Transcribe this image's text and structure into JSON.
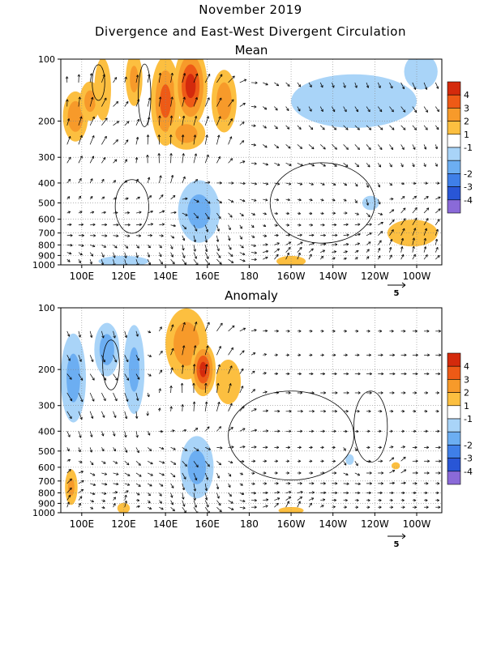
{
  "header": {
    "title": "November 2019",
    "subtitle": "Divergence and East-West Divergent Circulation"
  },
  "chart_data": [
    {
      "type": "heatmap",
      "title": "Mean",
      "x_tick_labels": [
        "100E",
        "120E",
        "140E",
        "160E",
        "180",
        "160W",
        "140W",
        "120W",
        "100W"
      ],
      "x_ticks_deg_east": [
        100,
        120,
        140,
        160,
        180,
        200,
        220,
        240,
        260
      ],
      "xlim_deg_east": [
        90,
        272
      ],
      "y_tick_labels": [
        "100",
        "200",
        "300",
        "400",
        "500",
        "600",
        "700",
        "800",
        "900",
        "1000"
      ],
      "y_ticks_hpa": [
        100,
        200,
        300,
        400,
        500,
        600,
        700,
        800,
        900,
        1000
      ],
      "ylim_hpa": [
        100,
        1000
      ],
      "y_scale": "log",
      "vector_reference": "5",
      "colorbar": {
        "labels": [
          "4",
          "3",
          "2",
          "1",
          "-1",
          "-2",
          "-3",
          "-4"
        ],
        "colors": [
          "#d42a0c",
          "#ee5a16",
          "#f79a2a",
          "#fcbf40",
          "#ffffff",
          "#a9d4f8",
          "#6caef2",
          "#3f7fe8",
          "#2956d6",
          "#8a6ad8"
        ]
      },
      "blobs": [
        {
          "lon": 97,
          "p": 190,
          "rx": 6,
          "ry": 0.28,
          "v": 2.6
        },
        {
          "lon": 104,
          "p": 160,
          "rx": 5,
          "ry": 0.22,
          "v": 2.2
        },
        {
          "lon": 110,
          "p": 140,
          "rx": 4,
          "ry": 0.35,
          "v": 1.6
        },
        {
          "lon": 125,
          "p": 125,
          "rx": 4,
          "ry": 0.3,
          "v": 2.0
        },
        {
          "lon": 140,
          "p": 160,
          "rx": 7,
          "ry": 0.5,
          "v": 3.2
        },
        {
          "lon": 152,
          "p": 135,
          "rx": 8,
          "ry": 0.45,
          "v": 4.3
        },
        {
          "lon": 150,
          "p": 230,
          "rx": 9,
          "ry": 0.18,
          "v": 2.4
        },
        {
          "lon": 168,
          "p": 160,
          "rx": 6,
          "ry": 0.35,
          "v": 2.5
        },
        {
          "lon": 156,
          "p": 550,
          "rx": 10,
          "ry": 0.35,
          "v": -2.2
        },
        {
          "lon": 230,
          "p": 160,
          "rx": 30,
          "ry": 0.3,
          "v": -1.8
        },
        {
          "lon": 262,
          "p": 115,
          "rx": 8,
          "ry": 0.2,
          "v": -1.7
        },
        {
          "lon": 238,
          "p": 500,
          "rx": 4,
          "ry": 0.08,
          "v": -1.5
        },
        {
          "lon": 258,
          "p": 700,
          "rx": 12,
          "ry": 0.15,
          "v": 1.8
        },
        {
          "lon": 200,
          "p": 960,
          "rx": 7,
          "ry": 0.06,
          "v": 1.6
        },
        {
          "lon": 120,
          "p": 960,
          "rx": 12,
          "ry": 0.06,
          "v": -1.5
        }
      ],
      "contours": [
        {
          "lon": 108,
          "p": 130,
          "rx": 3,
          "ry": 0.2
        },
        {
          "lon": 130,
          "p": 150,
          "rx": 3,
          "ry": 0.35
        },
        {
          "lon": 215,
          "p": 500,
          "rx": 25,
          "ry": 0.45
        },
        {
          "lon": 124,
          "p": 520,
          "rx": 8,
          "ry": 0.3
        }
      ]
    },
    {
      "type": "heatmap",
      "title": "Anomaly",
      "x_tick_labels": [
        "100E",
        "120E",
        "140E",
        "160E",
        "180",
        "160W",
        "140W",
        "120W",
        "100W"
      ],
      "x_ticks_deg_east": [
        100,
        120,
        140,
        160,
        180,
        200,
        220,
        240,
        260
      ],
      "xlim_deg_east": [
        90,
        272
      ],
      "y_tick_labels": [
        "100",
        "200",
        "300",
        "400",
        "500",
        "600",
        "700",
        "800",
        "900",
        "1000"
      ],
      "y_ticks_hpa": [
        100,
        200,
        300,
        400,
        500,
        600,
        700,
        800,
        900,
        1000
      ],
      "ylim_hpa": [
        100,
        1000
      ],
      "y_scale": "log",
      "vector_reference": "5",
      "colorbar": {
        "labels": [
          "4",
          "3",
          "2",
          "1",
          "-1",
          "-2",
          "-3",
          "-4"
        ],
        "colors": [
          "#d42a0c",
          "#ee5a16",
          "#f79a2a",
          "#fcbf40",
          "#ffffff",
          "#a9d4f8",
          "#6caef2",
          "#3f7fe8",
          "#2956d6",
          "#8a6ad8"
        ]
      },
      "blobs": [
        {
          "lon": 96,
          "p": 220,
          "rx": 6,
          "ry": 0.5,
          "v": -2.2
        },
        {
          "lon": 112,
          "p": 160,
          "rx": 6,
          "ry": 0.3,
          "v": -2.4
        },
        {
          "lon": 125,
          "p": 200,
          "rx": 5,
          "ry": 0.5,
          "v": -2.0
        },
        {
          "lon": 150,
          "p": 150,
          "rx": 10,
          "ry": 0.4,
          "v": 2.6
        },
        {
          "lon": 158,
          "p": 200,
          "rx": 6,
          "ry": 0.3,
          "v": 4.2
        },
        {
          "lon": 170,
          "p": 230,
          "rx": 6,
          "ry": 0.25,
          "v": 1.6
        },
        {
          "lon": 155,
          "p": 600,
          "rx": 8,
          "ry": 0.35,
          "v": -2.2
        },
        {
          "lon": 95,
          "p": 750,
          "rx": 3,
          "ry": 0.2,
          "v": 2.0
        },
        {
          "lon": 120,
          "p": 950,
          "rx": 3,
          "ry": 0.06,
          "v": 1.7
        },
        {
          "lon": 200,
          "p": 975,
          "rx": 6,
          "ry": 0.04,
          "v": 1.5
        },
        {
          "lon": 228,
          "p": 550,
          "rx": 2,
          "ry": 0.06,
          "v": -1.4
        },
        {
          "lon": 250,
          "p": 590,
          "rx": 2,
          "ry": 0.04,
          "v": 1.6
        }
      ],
      "contours": [
        {
          "lon": 114,
          "p": 190,
          "rx": 4,
          "ry": 0.28
        },
        {
          "lon": 200,
          "p": 420,
          "rx": 30,
          "ry": 0.5
        },
        {
          "lon": 238,
          "p": 380,
          "rx": 8,
          "ry": 0.4
        }
      ]
    }
  ]
}
